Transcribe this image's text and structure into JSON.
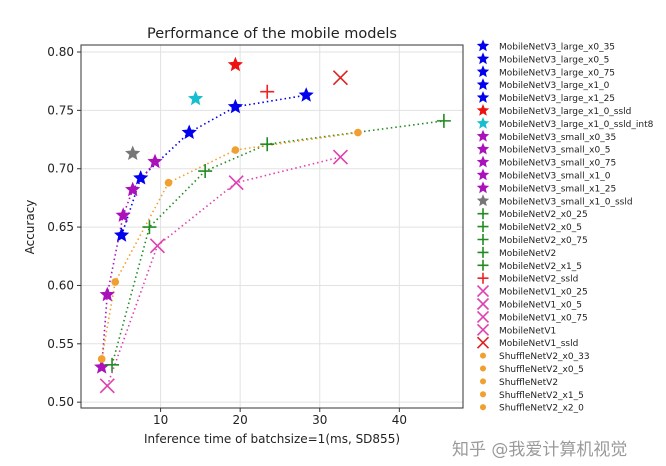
{
  "chart_data": {
    "type": "scatter",
    "title": "Performance of the mobile models",
    "xlabel": "Inference time of batchsize=1(ms, SD855)",
    "ylabel": "Accuracy",
    "xlim": [
      0,
      48
    ],
    "ylim": [
      0.495,
      0.806
    ],
    "xticks": [
      10,
      20,
      30,
      40
    ],
    "yticks": [
      0.5,
      0.55,
      0.6,
      0.65,
      0.7,
      0.75,
      0.8
    ],
    "ytick_labels": [
      "0.50",
      "0.55",
      "0.60",
      "0.65",
      "0.70",
      "0.75",
      "0.80"
    ],
    "grid": true,
    "legend_position": "outside-right",
    "series": [
      {
        "name": "MobileNetV3_large",
        "marker": "star",
        "color": "#0000ee",
        "line": true,
        "x": [
          5.1,
          7.5,
          13.6,
          19.4,
          28.3
        ],
        "y": [
          0.643,
          0.692,
          0.731,
          0.753,
          0.763
        ],
        "labels": [
          "MobileNetV3_large_x0_35",
          "MobileNetV3_large_x0_5",
          "MobileNetV3_large_x0_75",
          "MobileNetV3_large_x1_0",
          "MobileNetV3_large_x1_25"
        ]
      },
      {
        "name": "MobileNetV3_large_x1_0_ssld",
        "marker": "star",
        "color": "#ee1111",
        "line": false,
        "x": [
          19.4
        ],
        "y": [
          0.789
        ],
        "labels": [
          "MobileNetV3_large_x1_0_ssld"
        ]
      },
      {
        "name": "MobileNetV3_large_x1_0_ssld_int8",
        "marker": "star",
        "color": "#17becf",
        "line": false,
        "x": [
          14.4
        ],
        "y": [
          0.76
        ],
        "labels": [
          "MobileNetV3_large_x1_0_ssld_int8"
        ]
      },
      {
        "name": "MobileNetV3_small",
        "marker": "star",
        "color": "#aa11bb",
        "line": true,
        "x": [
          2.6,
          3.3,
          5.3,
          6.5,
          9.3
        ],
        "y": [
          0.53,
          0.592,
          0.66,
          0.682,
          0.706
        ],
        "labels": [
          "MobileNetV3_small_x0_35",
          "MobileNetV3_small_x0_5",
          "MobileNetV3_small_x0_75",
          "MobileNetV3_small_x1_0",
          "MobileNetV3_small_x1_25"
        ]
      },
      {
        "name": "MobileNetV3_small_x1_0_ssld",
        "marker": "star",
        "color": "#777777",
        "line": false,
        "x": [
          6.5
        ],
        "y": [
          0.713
        ],
        "labels": [
          "MobileNetV3_small_x1_0_ssld"
        ]
      },
      {
        "name": "MobileNetV2",
        "marker": "plus",
        "color": "#228b22",
        "line": true,
        "x": [
          3.9,
          8.6,
          15.6,
          23.4,
          45.6
        ],
        "y": [
          0.532,
          0.65,
          0.698,
          0.721,
          0.741
        ],
        "labels": [
          "MobileNetV2_x0_25",
          "MobileNetV2_x0_5",
          "MobileNetV2_x0_75",
          "MobileNetV2",
          "MobileNetV2_x1_5"
        ]
      },
      {
        "name": "MobileNetV2_ssld",
        "marker": "plus",
        "color": "#ee2222",
        "line": false,
        "x": [
          23.4
        ],
        "y": [
          0.766
        ],
        "labels": [
          "MobileNetV2_ssld"
        ]
      },
      {
        "name": "MobileNetV1",
        "marker": "x",
        "color": "#e040b0",
        "line": true,
        "x": [
          3.3,
          9.6,
          19.5,
          32.6
        ],
        "y": [
          0.514,
          0.634,
          0.688,
          0.71
        ],
        "labels": [
          "MobileNetV1_x0_25",
          "MobileNetV1_x0_5",
          "MobileNetV1_x0_75",
          "MobileNetV1"
        ]
      },
      {
        "name": "MobileNetV1_ssld",
        "marker": "x",
        "color": "#dd2222",
        "line": false,
        "x": [
          32.6
        ],
        "y": [
          0.778
        ],
        "labels": [
          "MobileNetV1_ssld"
        ]
      },
      {
        "name": "ShuffleNetV2",
        "marker": "circle",
        "color": "#f0a030",
        "line": true,
        "x": [
          2.6,
          4.3,
          11.0,
          19.4,
          34.8
        ],
        "y": [
          0.537,
          0.603,
          0.688,
          0.716,
          0.731
        ],
        "labels": [
          "ShuffleNetV2_x0_33",
          "ShuffleNetV2_x0_5",
          "ShuffleNetV2",
          "ShuffleNetV2_x1_5",
          "ShuffleNetV2_x2_0"
        ]
      }
    ]
  },
  "watermark": "知乎 @我爱计算机视觉"
}
